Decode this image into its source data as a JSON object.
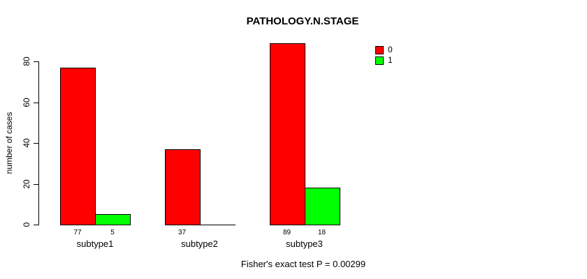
{
  "chart_data": {
    "type": "bar",
    "title": "PATHOLOGY.N.STAGE",
    "ylabel": "number of cases",
    "xlabel": "",
    "categories": [
      "subtype1",
      "subtype2",
      "subtype3"
    ],
    "series": [
      {
        "name": "0",
        "color": "#ff0000",
        "values": [
          77,
          37,
          89
        ]
      },
      {
        "name": "1",
        "color": "#00ff00",
        "values": [
          5,
          0,
          18
        ]
      }
    ],
    "bar_value_labels": [
      [
        "77",
        "5"
      ],
      [
        "37",
        ""
      ],
      [
        "89",
        "18"
      ]
    ],
    "ylim": [
      0,
      80
    ],
    "yticks": [
      0,
      20,
      40,
      60,
      80
    ],
    "grid": false,
    "legend_position": "top-right",
    "annotation": "Fisher's exact test P = 0.00299"
  }
}
